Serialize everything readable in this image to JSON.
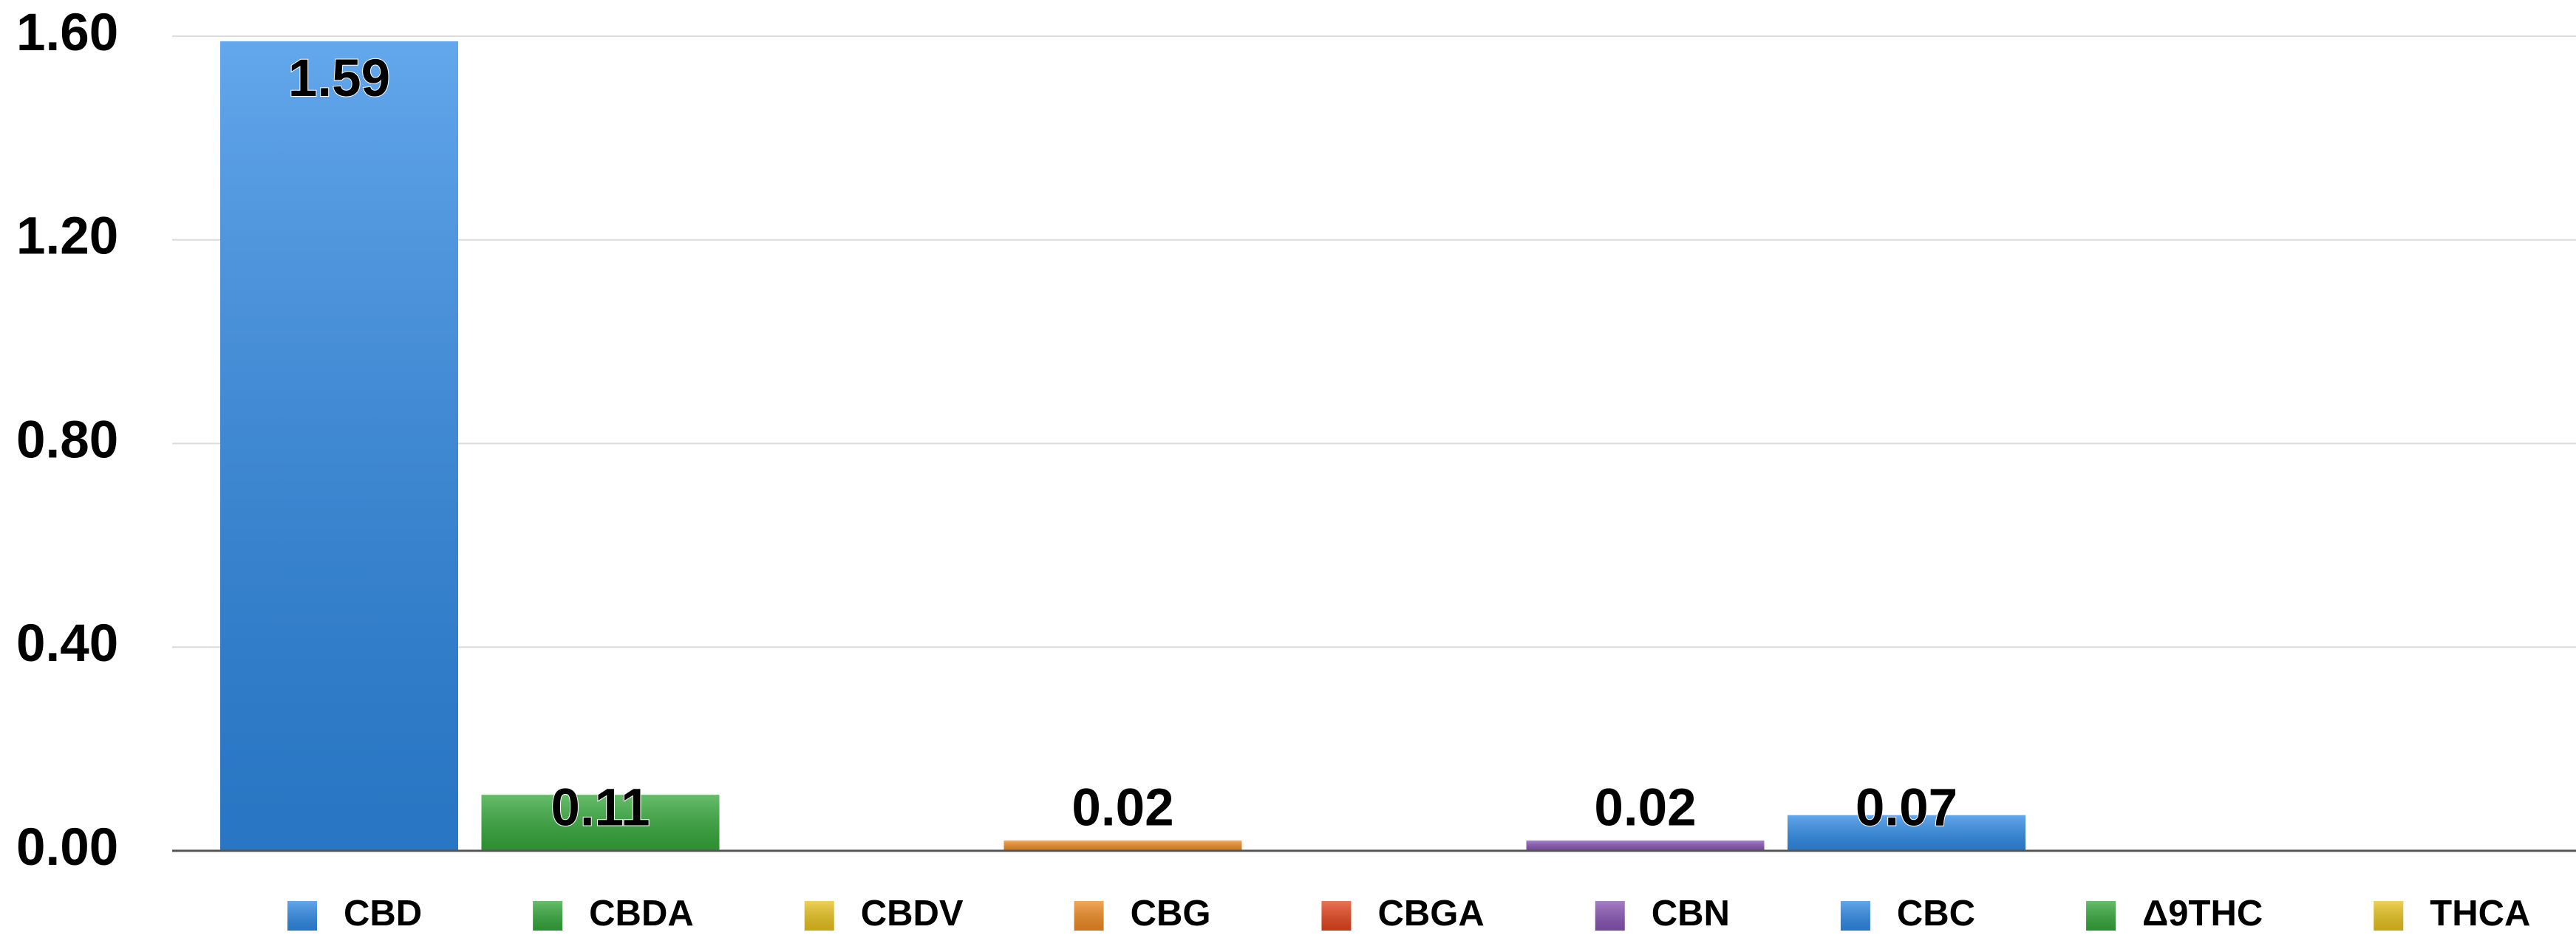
{
  "chart_data": {
    "type": "bar",
    "categories": [
      "CBD",
      "CBDA",
      "CBDV",
      "CBG",
      "CBGA",
      "CBN",
      "CBC",
      "Δ9THC",
      "THCA"
    ],
    "values": [
      1.59,
      0.11,
      0,
      0.02,
      0,
      0.02,
      0.07,
      0,
      0
    ],
    "colors": [
      "#2f8ae6",
      "#34a83a",
      "#e8c21e",
      "#ee8a22",
      "#e4451e",
      "#8754b3",
      "#2f8ae6",
      "#34a83a",
      "#e8c21e"
    ],
    "ylim": [
      0,
      1.6
    ],
    "yticks": [
      {
        "value": 0,
        "label": "0.00"
      },
      {
        "value": 0.4,
        "label": "0.40"
      },
      {
        "value": 0.8,
        "label": "0.80"
      },
      {
        "value": 1.2,
        "label": "1.20"
      },
      {
        "value": 1.6,
        "label": "1.60"
      }
    ],
    "grid": true,
    "legend": "bottom"
  }
}
